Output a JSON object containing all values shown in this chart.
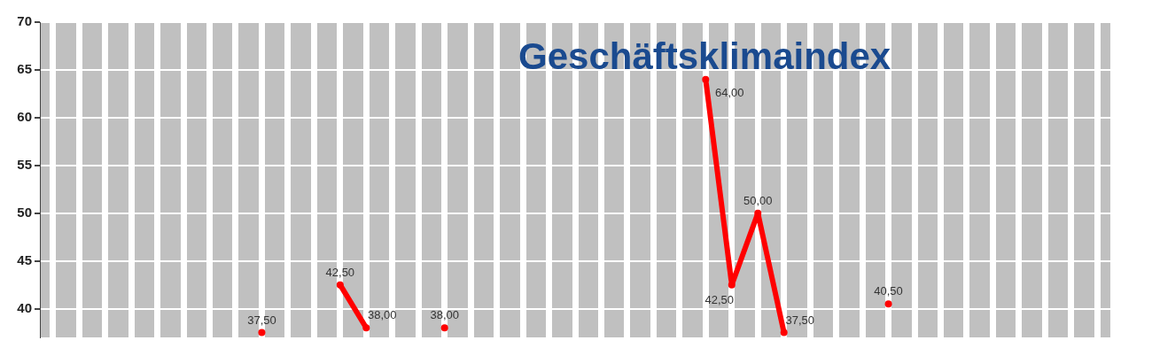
{
  "chart_data": {
    "type": "line",
    "title": "Geschäftsklimaindex",
    "categories": [
      null,
      null,
      null,
      null,
      null,
      null,
      null,
      null,
      null,
      null,
      null,
      null,
      null,
      null,
      null,
      null,
      null,
      null,
      null,
      null,
      null,
      null,
      null,
      null,
      null,
      null,
      null,
      null,
      null,
      null,
      null,
      null,
      null,
      null,
      null,
      null,
      null,
      null,
      null,
      null,
      null
    ],
    "series": [
      {
        "color": "#ff0000",
        "values": [
          null,
          null,
          null,
          null,
          null,
          null,
          null,
          null,
          37.5,
          null,
          null,
          42.5,
          38,
          null,
          null,
          38,
          null,
          null,
          null,
          null,
          null,
          null,
          null,
          null,
          null,
          64,
          42.5,
          50,
          37.5,
          null,
          null,
          null,
          40.5,
          null,
          null,
          null,
          null,
          null,
          null,
          null,
          null
        ],
        "value_labels": [
          null,
          null,
          null,
          null,
          null,
          null,
          null,
          null,
          "37,50",
          null,
          null,
          "42,50",
          "38,00",
          null,
          null,
          "38,00",
          null,
          null,
          null,
          null,
          null,
          null,
          null,
          null,
          null,
          "64,00",
          "42,50",
          "50,00",
          "37,50",
          null,
          null,
          null,
          "40,50",
          null,
          null,
          null,
          null,
          null,
          null,
          null,
          null
        ]
      }
    ],
    "ylim": [
      37,
      70
    ],
    "yticks": [
      40,
      45,
      50,
      55,
      60,
      65,
      70
    ],
    "grid": true,
    "tick_labels": "y",
    "marker": "circle",
    "line_style": "solid",
    "legend": false
  }
}
